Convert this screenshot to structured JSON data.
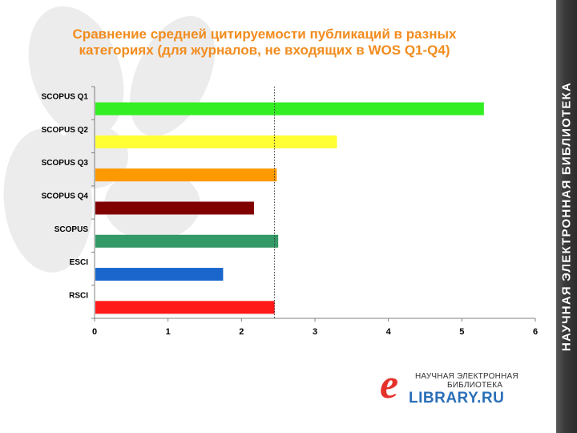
{
  "slide": {
    "title_line1": "Сравнение средней цитируемости публикаций в разных",
    "title_line2": "категориях (для журналов, не входящих в WOS Q1-Q4)",
    "sidebar_text": "НАУЧНАЯ ЭЛЕКТРОННАЯ БИБЛИОТЕКА"
  },
  "logo": {
    "letter": "e",
    "line1": "НАУЧНАЯ ЭЛЕКТРОННАЯ",
    "line2": "БИБЛИОТЕКА",
    "brand": "LIBRARY.RU"
  },
  "colors": {
    "title": "#f28c1e",
    "sidebar": "#3a3a3a",
    "logo_red": "#e4322b",
    "logo_blue": "#2a6fb8"
  },
  "chart_data": {
    "type": "bar",
    "orientation": "horizontal",
    "title": "Сравнение средней цитируемости публикаций в разных категориях (для журналов, не входящих в WOS Q1-Q4)",
    "xlabel": "",
    "ylabel": "",
    "categories": [
      "SCOPUS Q1",
      "SCOPUS Q2",
      "SCOPUS Q3",
      "SCOPUS Q4",
      "SCOPUS",
      "ESCI",
      "RSCI"
    ],
    "values": [
      5.3,
      3.3,
      2.48,
      2.17,
      2.5,
      1.75,
      2.45
    ],
    "bar_colors": [
      "#33ee22",
      "#ffff33",
      "#ff9900",
      "#800000",
      "#339966",
      "#1a66cc",
      "#ff1a1a"
    ],
    "xlim": [
      0,
      6
    ],
    "xticks": [
      0,
      1,
      2,
      3,
      4,
      5,
      6
    ],
    "reference_line": 2.45,
    "grid": false,
    "legend": "none"
  }
}
